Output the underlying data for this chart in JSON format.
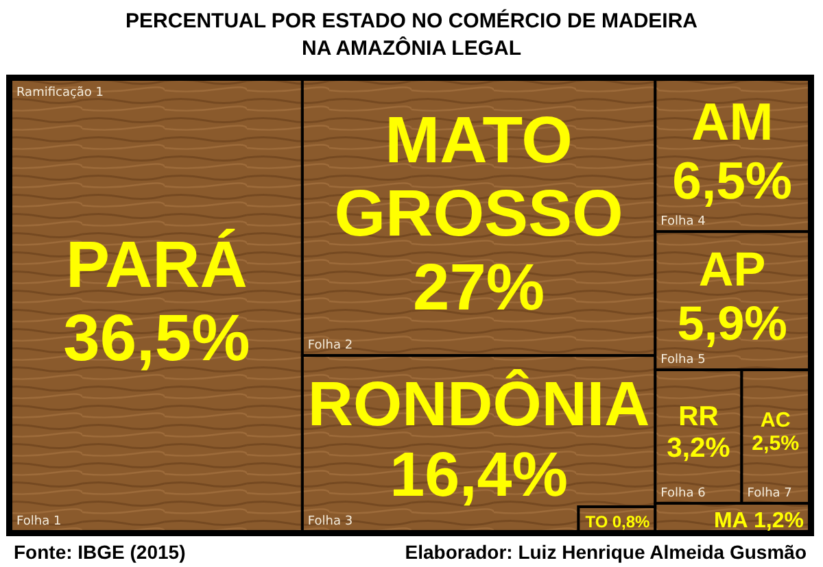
{
  "chart_data": {
    "type": "other",
    "title": "PERCENTUAL POR ESTADO NO COMÉRCIO DE MADEIRA NA AMAZÔNIA LEGAL",
    "categories": [
      "PARÁ",
      "MATO GROSSO",
      "RONDÔNIA",
      "AM",
      "AP",
      "RR",
      "AC",
      "TO",
      "MA"
    ],
    "values": [
      36.5,
      27,
      16.4,
      6.5,
      5.9,
      3.2,
      2.5,
      0.8,
      1.2
    ],
    "value_labels": [
      "36,5%",
      "27%",
      "16,4%",
      "6,5%",
      "5,9%",
      "3,2%",
      "2,5%",
      "0,8%",
      "1,2%"
    ],
    "colors": [
      "#8a5a2c",
      "#8a5a2c",
      "#8a5a2c",
      "#8a5a2c",
      "#8a5a2c",
      "#8a5a2c",
      "#8a5a2c",
      "#8a5a2c",
      "#8a5a2c"
    ],
    "annotations": [
      "Ramificação 1",
      "Folha 1",
      "Folha 2",
      "Folha 3",
      "Folha 4",
      "Folha 5",
      "Folha 6",
      "Folha 7",
      "Fonte: IBGE (2015)",
      "Elaborador: Luiz Henrique Almeida Gusmão"
    ]
  }
}
